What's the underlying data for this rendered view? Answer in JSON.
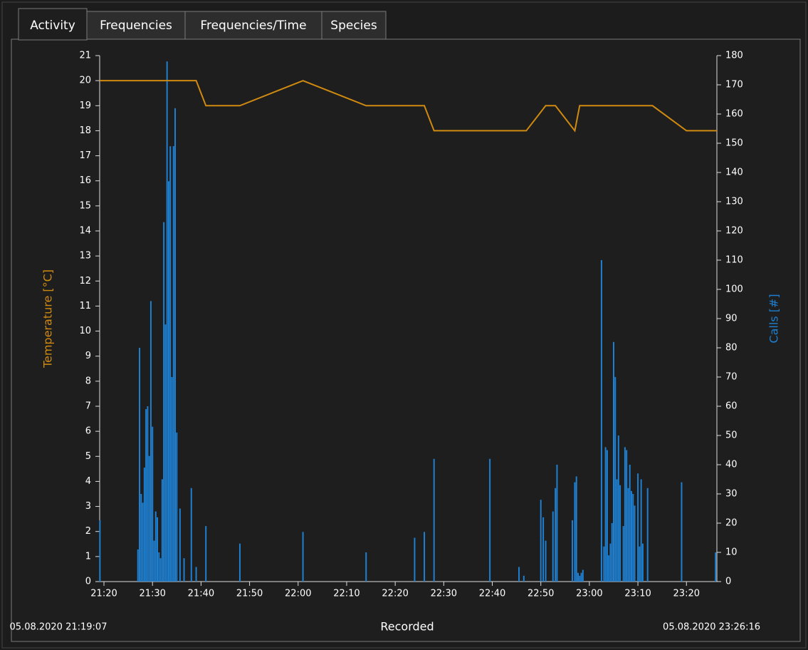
{
  "tabs": [
    "Activity",
    "Frequencies",
    "Frequencies/Time",
    "Species"
  ],
  "chart_data": {
    "type": "bar-line",
    "x_label": "Recorded",
    "xlim": [
      {
        "value": "21:19:07",
        "label": "05.08.2020 21:19:07"
      },
      {
        "value": "23:26:16",
        "label": "05.08.2020 23:26:16"
      }
    ],
    "xticks": [
      "21:20",
      "21:30",
      "21:40",
      "21:50",
      "22:00",
      "22:10",
      "22:20",
      "22:30",
      "22:40",
      "22:50",
      "23:00",
      "23:10",
      "23:20"
    ],
    "y_label": "Temperature [°C]",
    "ylim": [
      0,
      21
    ],
    "yticks": [
      0,
      1,
      2,
      3,
      4,
      5,
      6,
      7,
      8,
      9,
      10,
      11,
      12,
      13,
      14,
      15,
      16,
      17,
      18,
      19,
      20,
      21
    ],
    "y2_label": "Calls [#]",
    "y2lim": [
      0,
      180
    ],
    "y2ticks": [
      0,
      10,
      20,
      30,
      40,
      50,
      60,
      70,
      80,
      90,
      100,
      110,
      120,
      130,
      140,
      150,
      160,
      170,
      180
    ],
    "series": [
      {
        "name": "Temperature",
        "type": "line",
        "color": "#d08a10",
        "x": [
          "21:19:07",
          "21:39:00",
          "21:41:00",
          "21:48:00",
          "22:01:00",
          "22:14:00",
          "22:26:00",
          "22:28:00",
          "22:47:00",
          "22:51:00",
          "22:53:00",
          "22:57:00",
          "22:58:00",
          "23:13:00",
          "23:20:00",
          "23:26:16"
        ],
        "values": [
          20,
          20,
          19,
          19,
          20,
          19,
          19,
          18,
          18,
          19,
          19,
          18,
          19,
          19,
          18,
          18
        ]
      },
      {
        "name": "Calls",
        "type": "bar",
        "axis": "y2",
        "color": "#1f7fd0",
        "x": [
          "21:19:10",
          "21:27:00",
          "21:27:20",
          "21:27:40",
          "21:28:00",
          "21:28:20",
          "21:28:40",
          "21:29:00",
          "21:29:20",
          "21:29:40",
          "21:30:00",
          "21:30:20",
          "21:30:40",
          "21:31:00",
          "21:31:20",
          "21:31:40",
          "21:32:00",
          "21:32:20",
          "21:32:40",
          "21:33:00",
          "21:33:20",
          "21:33:40",
          "21:34:00",
          "21:34:20",
          "21:34:40",
          "21:35:00",
          "21:35:40",
          "21:36:30",
          "21:38:00",
          "21:39:00",
          "21:41:00",
          "21:48:00",
          "22:01:00",
          "22:14:00",
          "22:24:00",
          "22:26:00",
          "22:28:00",
          "22:39:30",
          "22:45:30",
          "22:46:30",
          "22:50:00",
          "22:50:30",
          "22:51:00",
          "22:52:30",
          "22:53:00",
          "22:53:20",
          "22:56:30",
          "22:57:00",
          "22:57:20",
          "22:57:40",
          "22:58:00",
          "22:58:20",
          "22:58:40",
          "23:02:30",
          "23:03:00",
          "23:03:20",
          "23:03:40",
          "23:04:00",
          "23:04:20",
          "23:04:40",
          "23:05:00",
          "23:05:20",
          "23:05:40",
          "23:06:00",
          "23:06:20",
          "23:07:00",
          "23:07:20",
          "23:07:40",
          "23:08:00",
          "23:08:20",
          "23:08:40",
          "23:09:00",
          "23:09:20",
          "23:10:00",
          "23:10:20",
          "23:10:40",
          "23:11:00",
          "23:12:00",
          "23:19:00",
          "23:26:00"
        ],
        "values": [
          21,
          11,
          80,
          30,
          27,
          39,
          59,
          60,
          43,
          96,
          53,
          14,
          24,
          22,
          10,
          8,
          35,
          123,
          88,
          178,
          137,
          149,
          70,
          149,
          162,
          51,
          25,
          8,
          32,
          5,
          19,
          13,
          17,
          10,
          15,
          17,
          42,
          42,
          5,
          2,
          28,
          22,
          14,
          24,
          32,
          40,
          21,
          34,
          36,
          3,
          2,
          3,
          4,
          110,
          12,
          46,
          45,
          9,
          13,
          20,
          82,
          70,
          35,
          50,
          33,
          19,
          46,
          45,
          32,
          40,
          31,
          30,
          26,
          37,
          12,
          35,
          13,
          32,
          34,
          10
        ]
      }
    ]
  }
}
